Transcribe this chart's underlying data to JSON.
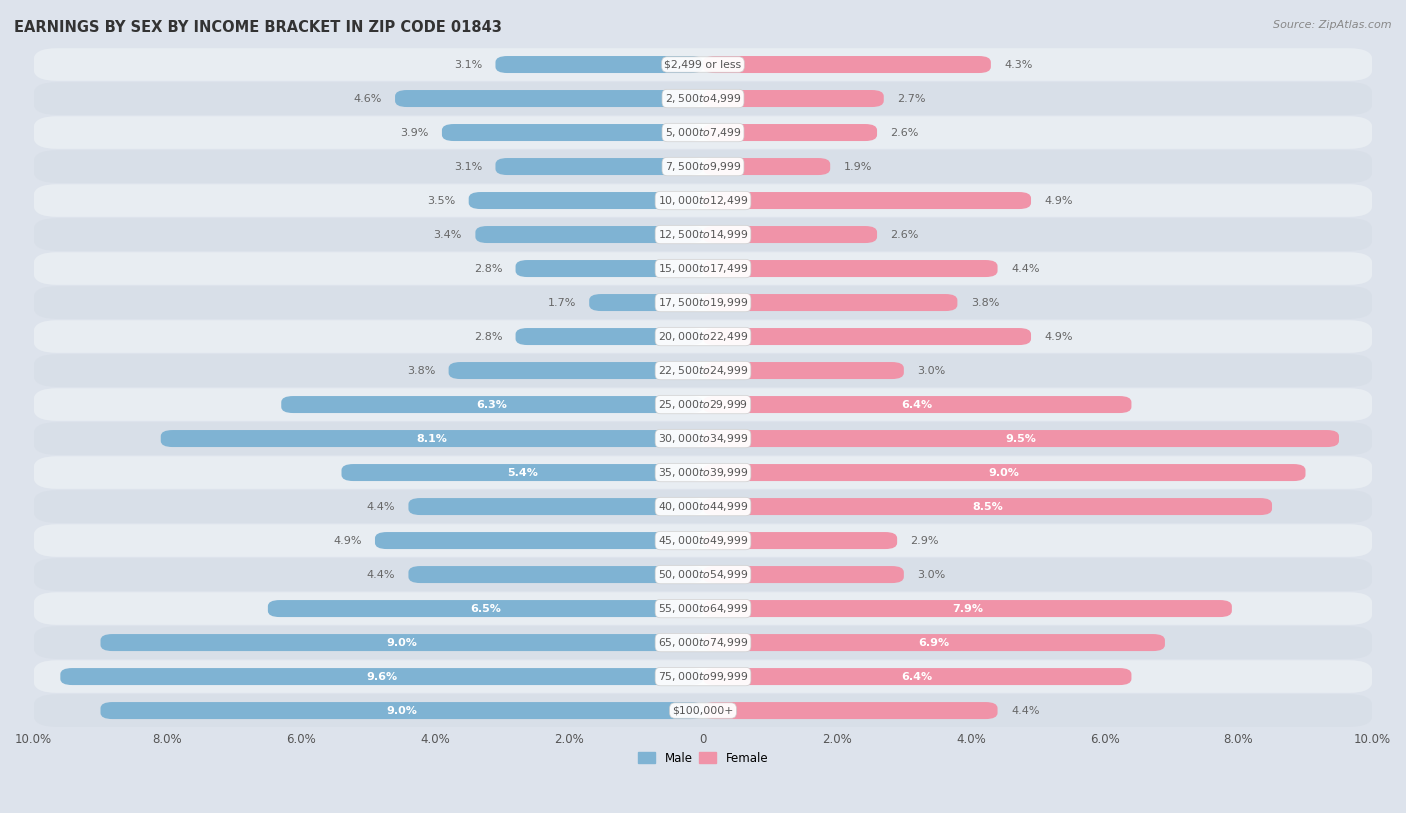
{
  "title": "EARNINGS BY SEX BY INCOME BRACKET IN ZIP CODE 01843",
  "source": "Source: ZipAtlas.com",
  "categories": [
    "$2,499 or less",
    "$2,500 to $4,999",
    "$5,000 to $7,499",
    "$7,500 to $9,999",
    "$10,000 to $12,499",
    "$12,500 to $14,999",
    "$15,000 to $17,499",
    "$17,500 to $19,999",
    "$20,000 to $22,499",
    "$22,500 to $24,999",
    "$25,000 to $29,999",
    "$30,000 to $34,999",
    "$35,000 to $39,999",
    "$40,000 to $44,999",
    "$45,000 to $49,999",
    "$50,000 to $54,999",
    "$55,000 to $64,999",
    "$65,000 to $74,999",
    "$75,000 to $99,999",
    "$100,000+"
  ],
  "male_values": [
    3.1,
    4.6,
    3.9,
    3.1,
    3.5,
    3.4,
    2.8,
    1.7,
    2.8,
    3.8,
    6.3,
    8.1,
    5.4,
    4.4,
    4.9,
    4.4,
    6.5,
    9.0,
    9.6,
    9.0
  ],
  "female_values": [
    4.3,
    2.7,
    2.6,
    1.9,
    4.9,
    2.6,
    4.4,
    3.8,
    4.9,
    3.0,
    6.4,
    9.5,
    9.0,
    8.5,
    2.9,
    3.0,
    7.9,
    6.9,
    6.4,
    4.4
  ],
  "male_color": "#7fb3d3",
  "female_color": "#f093a8",
  "male_label_inside_color": "#ffffff",
  "male_label_outside_color": "#666666",
  "female_label_inside_color": "#ffffff",
  "female_label_outside_color": "#666666",
  "row_colors": [
    "#e8edf2",
    "#d8dfe8"
  ],
  "background_color": "#dde3ec",
  "cat_label_bg": "#ffffff",
  "cat_label_color": "#555555",
  "axis_max": 10.0,
  "inside_threshold": 5.0,
  "title_fontsize": 10.5,
  "label_fontsize": 8.0,
  "cat_fontsize": 7.8,
  "tick_fontsize": 8.5,
  "source_fontsize": 8,
  "bar_height": 0.5
}
